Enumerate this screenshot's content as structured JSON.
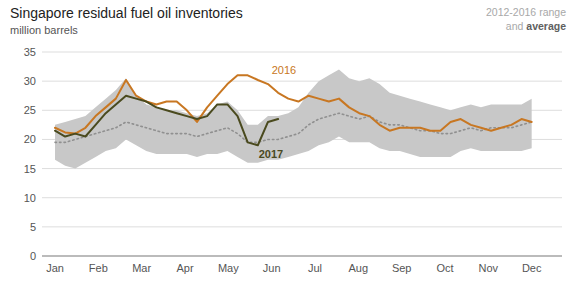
{
  "chart_data": {
    "type": "line",
    "title": "Singapore residual fuel oil inventories",
    "subtitle": "million barrels",
    "x": [
      0,
      0.234043,
      0.468085,
      0.702128,
      0.93617,
      1.170213,
      1.404255,
      1.638298,
      1.87234,
      2.106383,
      2.340426,
      2.574468,
      2.808511,
      3.042553,
      3.276596,
      3.510638,
      3.744681,
      3.978723,
      4.212766,
      4.446809,
      4.680851,
      4.914894,
      5.148936,
      5.382979,
      5.617021,
      5.851064,
      6.085106,
      6.319149,
      6.553191,
      6.787234,
      7.021277,
      7.255319,
      7.489362,
      7.723404,
      7.957447,
      8.191489,
      8.425532,
      8.659574,
      8.893617,
      9.12766,
      9.361702,
      9.595745,
      9.829787,
      10.06383,
      10.297872,
      10.531915,
      10.765957,
      11
    ],
    "xlim": [
      -0.3,
      11.7
    ],
    "xticks": [
      {
        "value": 0,
        "label": "Jan"
      },
      {
        "value": 1,
        "label": "Feb"
      },
      {
        "value": 2,
        "label": "Mar"
      },
      {
        "value": 3,
        "label": "Apr"
      },
      {
        "value": 4,
        "label": "May"
      },
      {
        "value": 5,
        "label": "Jun"
      },
      {
        "value": 6,
        "label": "Jul"
      },
      {
        "value": 7,
        "label": "Aug"
      },
      {
        "value": 8,
        "label": "Sep"
      },
      {
        "value": 9,
        "label": "Oct"
      },
      {
        "value": 10,
        "label": "Nov"
      },
      {
        "value": 11,
        "label": "Dec"
      }
    ],
    "ylim": [
      0,
      35
    ],
    "yticks": [
      0,
      5,
      10,
      15,
      20,
      25,
      30,
      35
    ],
    "grid": true,
    "legend": "top-right",
    "series": [
      {
        "name": "2012-2016 range",
        "type": "area",
        "color": "#c8c8c8",
        "low": [
          16.5,
          15.5,
          15.0,
          16.0,
          17.0,
          18.0,
          18.5,
          20.0,
          19.0,
          18.0,
          17.5,
          17.5,
          17.5,
          17.5,
          17.0,
          17.5,
          17.5,
          18.0,
          17.0,
          16.0,
          16.0,
          16.5,
          16.5,
          17.0,
          17.5,
          18.0,
          19.0,
          19.5,
          20.5,
          19.5,
          19.5,
          19.5,
          18.5,
          18.0,
          18.0,
          17.5,
          17.0,
          17.0,
          17.0,
          17.0,
          18.0,
          18.5,
          18.0,
          18.0,
          18.0,
          18.0,
          18.0,
          18.5
        ],
        "high": [
          22.5,
          23.0,
          23.5,
          24.0,
          25.5,
          27.0,
          28.5,
          30.5,
          27.5,
          26.0,
          25.5,
          25.0,
          25.0,
          24.5,
          24.0,
          24.5,
          26.0,
          26.5,
          25.0,
          22.5,
          22.5,
          24.0,
          24.0,
          24.5,
          25.5,
          28.0,
          30.0,
          31.0,
          32.0,
          30.5,
          30.0,
          30.5,
          29.5,
          28.0,
          27.5,
          27.0,
          26.5,
          26.0,
          25.5,
          25.0,
          25.5,
          26.0,
          25.5,
          26.0,
          26.0,
          26.0,
          26.0,
          27.0
        ]
      },
      {
        "name": "average",
        "type": "line",
        "color": "#909090",
        "line_style": "dotted",
        "values": [
          19.5,
          19.5,
          20.0,
          20.5,
          21.0,
          21.5,
          22.0,
          23.0,
          22.5,
          22.0,
          21.5,
          21.0,
          21.0,
          21.0,
          20.5,
          21.0,
          21.5,
          22.0,
          21.0,
          19.5,
          19.5,
          20.0,
          20.0,
          20.5,
          21.0,
          22.5,
          23.5,
          24.0,
          24.5,
          24.0,
          23.5,
          24.0,
          23.0,
          22.5,
          22.5,
          22.0,
          21.5,
          21.5,
          21.0,
          21.0,
          21.5,
          22.0,
          21.5,
          22.0,
          22.0,
          22.0,
          22.5,
          23.0
        ]
      },
      {
        "type": "line",
        "color": "#c87722",
        "line_style": "solid",
        "values": [
          22.0,
          21.2,
          21.0,
          22.0,
          24.0,
          25.5,
          27.0,
          30.2,
          27.5,
          26.5,
          26.0,
          26.5,
          26.5,
          25.0,
          23.0,
          25.5,
          27.5,
          29.5,
          31.0,
          31.0,
          30.2,
          29.5,
          28.0,
          27.0,
          26.5,
          27.5,
          27.0,
          26.5,
          27.0,
          25.5,
          24.5,
          24.0,
          22.5,
          21.5,
          22.0,
          22.0,
          22.0,
          21.5,
          21.5,
          23.0,
          23.5,
          22.5,
          22.0,
          21.5,
          22.0,
          22.5,
          23.5,
          23.0
        ]
      },
      {
        "type": "line",
        "color": "#4a4a1e",
        "line_style": "solid",
        "values": [
          21.5,
          20.5,
          21.0,
          20.5,
          22.5,
          24.5,
          26.0,
          27.5,
          27.0,
          26.5,
          25.5,
          25.0,
          24.5,
          24.0,
          23.5,
          24.0,
          26.0,
          26.0,
          24.0,
          19.5,
          19.0,
          23.0,
          23.5,
          null,
          null,
          null,
          null,
          null,
          null,
          null,
          null,
          null,
          null,
          null,
          null,
          null,
          null,
          null,
          null,
          null,
          null,
          null,
          null,
          null,
          null,
          null,
          null,
          null
        ]
      }
    ],
    "annotations": [
      {
        "text": "2016",
        "x": 5.0,
        "y": 31.2,
        "color": "#c87722"
      },
      {
        "text": "2017",
        "x": 4.7,
        "y": 16.8,
        "color": "#4a4a1e"
      },
      {
        "text": "and "
      }
    ]
  }
}
